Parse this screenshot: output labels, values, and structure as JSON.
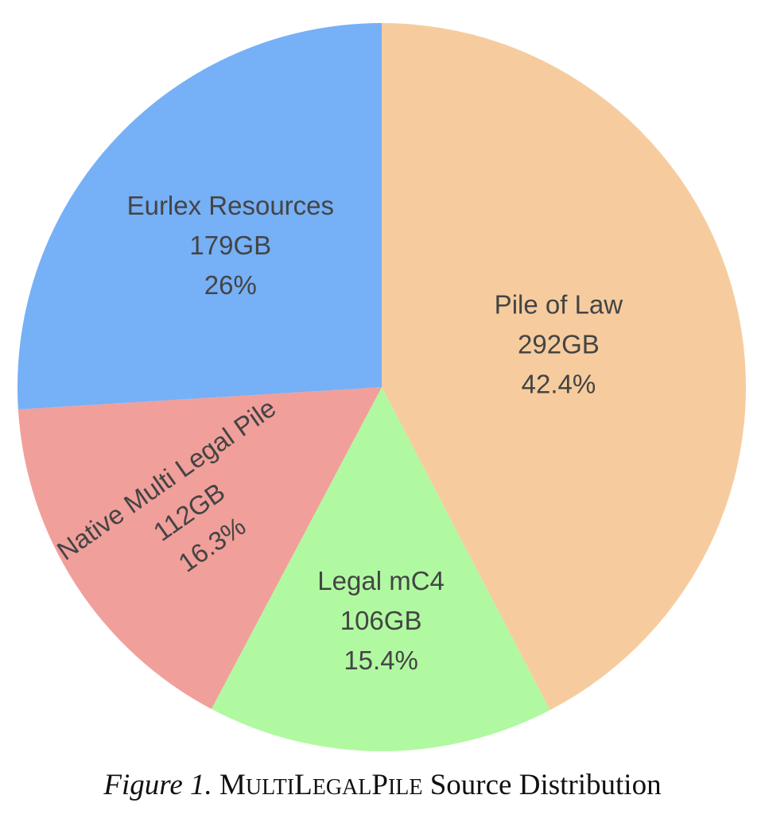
{
  "chart_data": {
    "type": "pie",
    "slices": [
      {
        "name": "Pile of Law",
        "size": "292GB",
        "percent": "42.4%",
        "value": 42.4,
        "color": "#f6cc9f"
      },
      {
        "name": "Legal mC4",
        "size": "106GB",
        "percent": "15.4%",
        "value": 15.4,
        "color": "#b0f9a1"
      },
      {
        "name": "Native Multi Legal Pile",
        "size": "112GB",
        "percent": "16.3%",
        "value": 16.3,
        "color": "#f19f9b"
      },
      {
        "name": "Eurlex Resources",
        "size": "179GB",
        "percent": "26%",
        "value": 26.0,
        "color": "#76b0f6"
      }
    ],
    "start": "top",
    "direction": "clockwise"
  },
  "caption": {
    "figure_number": "Figure 1.",
    "title_parts": [
      {
        "text": "M",
        "style": "big"
      },
      {
        "text": "ulti",
        "style": "small"
      },
      {
        "text": "L",
        "style": "big"
      },
      {
        "text": "egal",
        "style": "small"
      },
      {
        "text": "P",
        "style": "big"
      },
      {
        "text": "ile",
        "style": "small"
      }
    ],
    "title_rest": " Source Distribution"
  }
}
